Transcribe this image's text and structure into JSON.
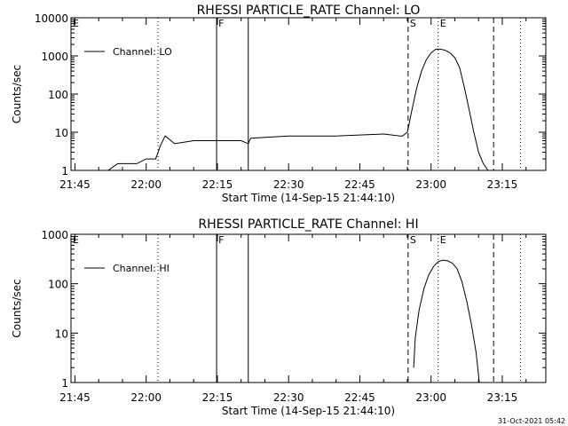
{
  "footer_timestamp": "31-Oct-2021 05:42",
  "chart_data": [
    {
      "type": "line",
      "title": "RHESSI PARTICLE_RATE Channel: LO",
      "xlabel": "Start Time (14-Sep-15 21:44:10)",
      "ylabel": "Counts/sec",
      "y_scale": "log",
      "ylim": [
        1,
        10000
      ],
      "yticks": [
        1,
        10,
        100,
        1000,
        10000
      ],
      "ytick_labels": [
        "1",
        "10",
        "100",
        "1000",
        "10000"
      ],
      "xlim": [
        "21:44:10",
        "23:24:10"
      ],
      "xticks": [
        "21:45",
        "22:00",
        "22:15",
        "22:30",
        "22:45",
        "23:00",
        "23:15"
      ],
      "legend": {
        "position": "top-left",
        "entries": [
          "Channel: LO"
        ]
      },
      "markers": [
        {
          "time": "21:44:10",
          "label": "E",
          "style": "dotted"
        },
        {
          "time": "22:02:30",
          "label": "",
          "style": "dotted"
        },
        {
          "time": "22:14:50",
          "label": "F",
          "style": "solid"
        },
        {
          "time": "22:21:30",
          "label": "",
          "style": "solid"
        },
        {
          "time": "22:55:10",
          "label": "S",
          "style": "dashed"
        },
        {
          "time": "23:01:30",
          "label": "E",
          "style": "dotted"
        },
        {
          "time": "23:13:10",
          "label": "",
          "style": "dashed"
        },
        {
          "time": "23:18:50",
          "label": "",
          "style": "dotted"
        }
      ],
      "series": [
        {
          "name": "Channel: LO",
          "x": [
            "21:44:10",
            "21:46:00",
            "21:48:00",
            "21:50:00",
            "21:52:00",
            "21:54:00",
            "21:56:00",
            "21:58:00",
            "22:00:00",
            "22:02:00",
            "22:03:00",
            "22:04:00",
            "22:06:00",
            "22:10:00",
            "22:15:00",
            "22:20:00",
            "22:21:30",
            "22:22:00",
            "22:30:00",
            "22:40:00",
            "22:50:00",
            "22:53:30",
            "22:54:00",
            "22:55:00",
            "22:56:00",
            "22:57:00",
            "22:58:00",
            "22:59:00",
            "23:00:00",
            "23:01:00",
            "23:02:00",
            "23:03:00",
            "23:04:00",
            "23:05:00",
            "23:06:00",
            "23:07:00",
            "23:08:00",
            "23:09:00",
            "23:10:00",
            "23:11:00",
            "23:12:00",
            "23:13:00",
            "23:14:00",
            "23:16:00",
            "23:17:00"
          ],
          "y": [
            1,
            1,
            1,
            1,
            1,
            1.5,
            1.5,
            1.5,
            2,
            2,
            4.5,
            8,
            5,
            6,
            6,
            6,
            5,
            7,
            8,
            8,
            9,
            8,
            8,
            10,
            40,
            150,
            400,
            800,
            1200,
            1500,
            1500,
            1400,
            1200,
            900,
            500,
            150,
            40,
            10,
            3,
            1.5,
            1,
            1,
            1,
            1,
            1
          ]
        }
      ]
    },
    {
      "type": "line",
      "title": "RHESSI PARTICLE_RATE Channel: HI",
      "xlabel": "Start Time (14-Sep-15 21:44:10)",
      "ylabel": "Counts/sec",
      "y_scale": "log",
      "ylim": [
        1,
        1000
      ],
      "yticks": [
        1,
        10,
        100,
        1000
      ],
      "ytick_labels": [
        "1",
        "10",
        "100",
        "1000"
      ],
      "xlim": [
        "21:44:10",
        "23:24:10"
      ],
      "xticks": [
        "21:45",
        "22:00",
        "22:15",
        "22:30",
        "22:45",
        "23:00",
        "23:15"
      ],
      "legend": {
        "position": "top-left",
        "entries": [
          "Channel: HI"
        ]
      },
      "markers": [
        {
          "time": "21:44:10",
          "label": "E",
          "style": "dotted"
        },
        {
          "time": "22:02:30",
          "label": "",
          "style": "dotted"
        },
        {
          "time": "22:14:50",
          "label": "F",
          "style": "solid"
        },
        {
          "time": "22:21:30",
          "label": "",
          "style": "solid"
        },
        {
          "time": "22:55:10",
          "label": "S",
          "style": "dashed"
        },
        {
          "time": "23:01:30",
          "label": "E",
          "style": "dotted"
        },
        {
          "time": "23:13:10",
          "label": "",
          "style": "dashed"
        },
        {
          "time": "23:18:50",
          "label": "",
          "style": "dotted"
        }
      ],
      "series": [
        {
          "name": "Channel: HI",
          "x": [
            "22:56:20",
            "22:56:40",
            "22:57:30",
            "22:58:30",
            "22:59:30",
            "23:00:30",
            "23:01:30",
            "23:02:30",
            "23:03:30",
            "23:04:30",
            "23:05:30",
            "23:06:30",
            "23:07:30",
            "23:08:30",
            "23:09:30",
            "23:10:10"
          ],
          "y": [
            2,
            8,
            30,
            80,
            150,
            220,
            280,
            300,
            290,
            260,
            200,
            110,
            45,
            15,
            4,
            1
          ]
        }
      ]
    }
  ]
}
